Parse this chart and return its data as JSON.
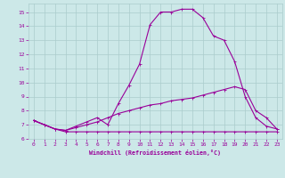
{
  "xlabel": "Windchill (Refroidissement éolien,°C)",
  "bg_color": "#cce8e8",
  "grid_color": "#aacccc",
  "line_color": "#990099",
  "xlim": [
    -0.5,
    23.5
  ],
  "ylim": [
    6.0,
    15.6
  ],
  "yticks": [
    6,
    7,
    8,
    9,
    10,
    11,
    12,
    13,
    14,
    15
  ],
  "xticks": [
    0,
    1,
    2,
    3,
    4,
    5,
    6,
    7,
    8,
    9,
    10,
    11,
    12,
    13,
    14,
    15,
    16,
    17,
    18,
    19,
    20,
    21,
    22,
    23
  ],
  "line1_x": [
    0,
    1,
    2,
    3,
    4,
    5,
    6,
    7,
    8,
    9,
    10,
    11,
    12,
    13,
    14,
    15,
    16,
    17,
    18,
    19,
    20,
    21,
    22,
    23
  ],
  "line1_y": [
    7.3,
    7.0,
    6.7,
    6.5,
    6.5,
    6.5,
    6.5,
    6.5,
    6.5,
    6.5,
    6.5,
    6.5,
    6.5,
    6.5,
    6.5,
    6.5,
    6.5,
    6.5,
    6.5,
    6.5,
    6.5,
    6.5,
    6.5,
    6.5
  ],
  "line2_x": [
    0,
    1,
    2,
    3,
    4,
    5,
    6,
    7,
    8,
    9,
    10,
    11,
    12,
    13,
    14,
    15,
    16,
    17,
    18,
    19,
    20,
    21,
    22,
    23
  ],
  "line2_y": [
    7.3,
    7.0,
    6.7,
    6.6,
    6.8,
    7.0,
    7.2,
    7.5,
    7.8,
    8.0,
    8.2,
    8.4,
    8.5,
    8.7,
    8.8,
    8.9,
    9.1,
    9.3,
    9.5,
    9.7,
    9.5,
    8.0,
    7.5,
    6.7
  ],
  "line3_x": [
    0,
    1,
    2,
    3,
    4,
    5,
    6,
    7,
    8,
    9,
    10,
    11,
    12,
    13,
    14,
    15,
    16,
    17,
    18,
    19,
    20,
    21,
    22,
    23
  ],
  "line3_y": [
    7.3,
    7.0,
    6.7,
    6.6,
    6.9,
    7.2,
    7.5,
    7.0,
    8.5,
    9.8,
    11.3,
    14.1,
    15.0,
    15.0,
    15.2,
    15.2,
    14.6,
    13.3,
    13.0,
    11.5,
    9.0,
    7.5,
    6.9,
    6.7
  ]
}
